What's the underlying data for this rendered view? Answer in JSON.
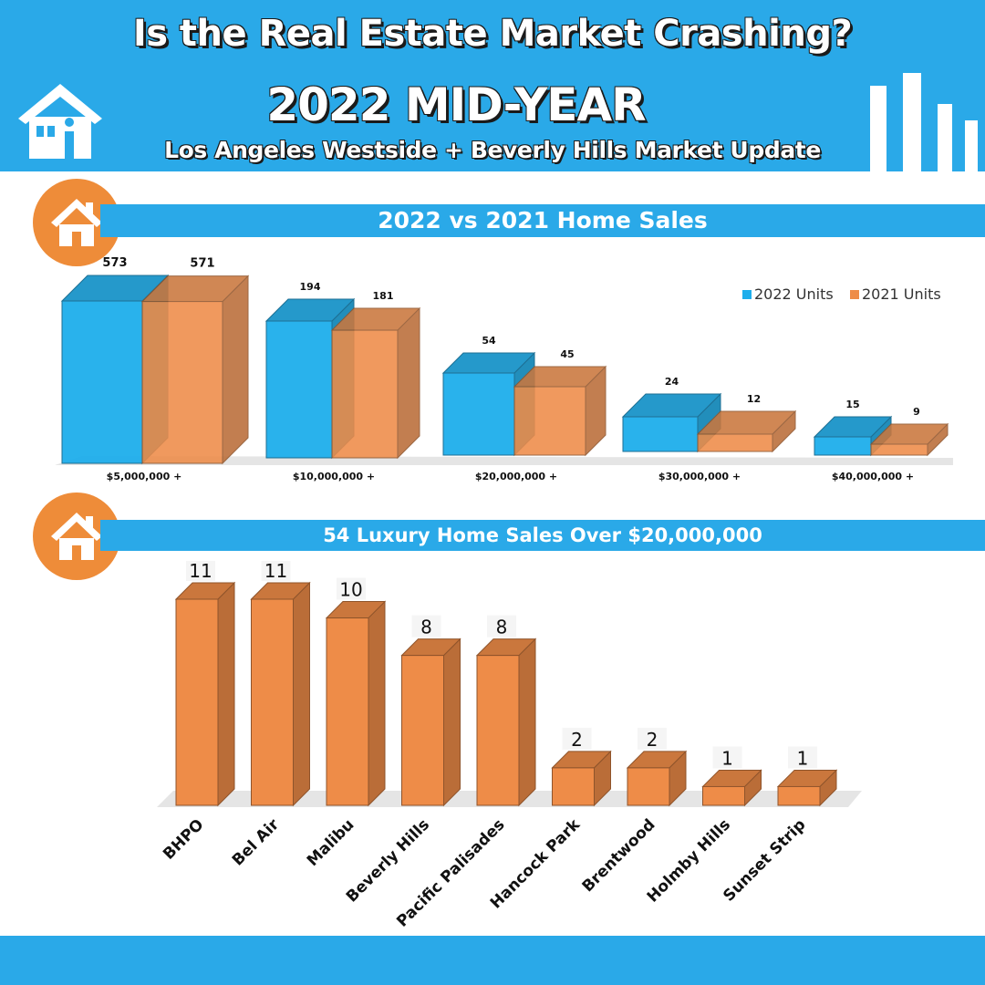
{
  "header": {
    "title": "Is the Real Estate Market Crashing?",
    "subtitle": "2022 MID-YEAR",
    "update": "Los Angeles Westside + Beverly Hills Market Update"
  },
  "section1": {
    "title": "2022 vs 2021 Home Sales"
  },
  "section2": {
    "title": "54 Luxury Home Sales Over $20,000,000"
  },
  "colors": {
    "blue": "#1eaeec",
    "orange": "#ee8c48",
    "band": "#2aa9e8"
  },
  "chart_data": [
    {
      "type": "bar",
      "title": "2022 vs 2021 Home Sales",
      "categories": [
        "$5,000,000 +",
        "$10,000,000 +",
        "$20,000,000 +",
        "$30,000,000 +",
        "$40,000,000 +"
      ],
      "series": [
        {
          "name": "2022 Units",
          "values": [
            573,
            194,
            54,
            24,
            15
          ]
        },
        {
          "name": "2021 Units",
          "values": [
            571,
            181,
            45,
            12,
            9
          ]
        }
      ],
      "legend_position": "top-right"
    },
    {
      "type": "bar",
      "title": "54 Luxury Home Sales Over $20,000,000",
      "categories": [
        "BHPO",
        "Bel Air",
        "Malibu",
        "Beverly Hills",
        "Pacific Palisades",
        "Hancock Park",
        "Brentwood",
        "Holmby Hills",
        "Sunset Strip"
      ],
      "values": [
        11,
        11,
        10,
        8,
        8,
        2,
        2,
        1,
        1
      ],
      "ylim": [
        0,
        11
      ]
    }
  ]
}
